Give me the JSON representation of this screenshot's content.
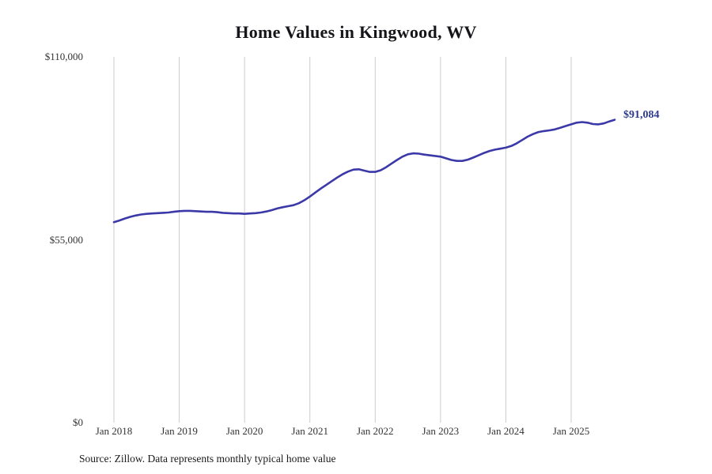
{
  "title": "Home Values in Kingwood, WV",
  "source_note": "Source: Zillow. Data represents monthly typical home value",
  "colors": {
    "line": "#3b38a8",
    "annotation": "#2b3a8c",
    "grid": "#cccccc",
    "tick_text": "#333333"
  },
  "chart_data": {
    "type": "line",
    "title": "Home Values in Kingwood, WV",
    "xlabel": "",
    "ylabel": "",
    "ylim": [
      0,
      110000
    ],
    "grid": "vertical-only",
    "legend": "none",
    "y_ticks": [
      {
        "value": 0,
        "label": "$0"
      },
      {
        "value": 55000,
        "label": "$55,000"
      },
      {
        "value": 110000,
        "label": "$110,000"
      }
    ],
    "x_tick_labels": [
      "Jan 2018",
      "Jan 2019",
      "Jan 2020",
      "Jan 2021",
      "Jan 2022",
      "Jan 2023",
      "Jan 2024",
      "Jan 2025"
    ],
    "x_start_month": "Jan 2018",
    "x_end_month": "Sep 2025",
    "annotation": {
      "text": "$91,084",
      "value": 91084,
      "position": "end-of-line"
    },
    "series": [
      {
        "name": "Typical home value (monthly)",
        "values": [
          60300,
          60800,
          61400,
          61900,
          62300,
          62600,
          62800,
          62900,
          63000,
          63100,
          63200,
          63400,
          63600,
          63700,
          63700,
          63600,
          63500,
          63400,
          63400,
          63300,
          63100,
          63000,
          62900,
          62900,
          62800,
          62900,
          63000,
          63200,
          63500,
          63900,
          64400,
          64800,
          65100,
          65400,
          66000,
          66900,
          68000,
          69200,
          70400,
          71500,
          72600,
          73700,
          74700,
          75500,
          76100,
          76200,
          75800,
          75400,
          75400,
          75900,
          76800,
          77900,
          79000,
          80000,
          80700,
          81000,
          80900,
          80600,
          80400,
          80200,
          80000,
          79500,
          79000,
          78700,
          78700,
          79100,
          79700,
          80400,
          81100,
          81700,
          82100,
          82400,
          82700,
          83200,
          84000,
          85000,
          86000,
          86800,
          87400,
          87700,
          87900,
          88200,
          88700,
          89200,
          89700,
          90200,
          90400,
          90200,
          89800,
          89700,
          90000,
          90600,
          91084
        ]
      }
    ]
  }
}
